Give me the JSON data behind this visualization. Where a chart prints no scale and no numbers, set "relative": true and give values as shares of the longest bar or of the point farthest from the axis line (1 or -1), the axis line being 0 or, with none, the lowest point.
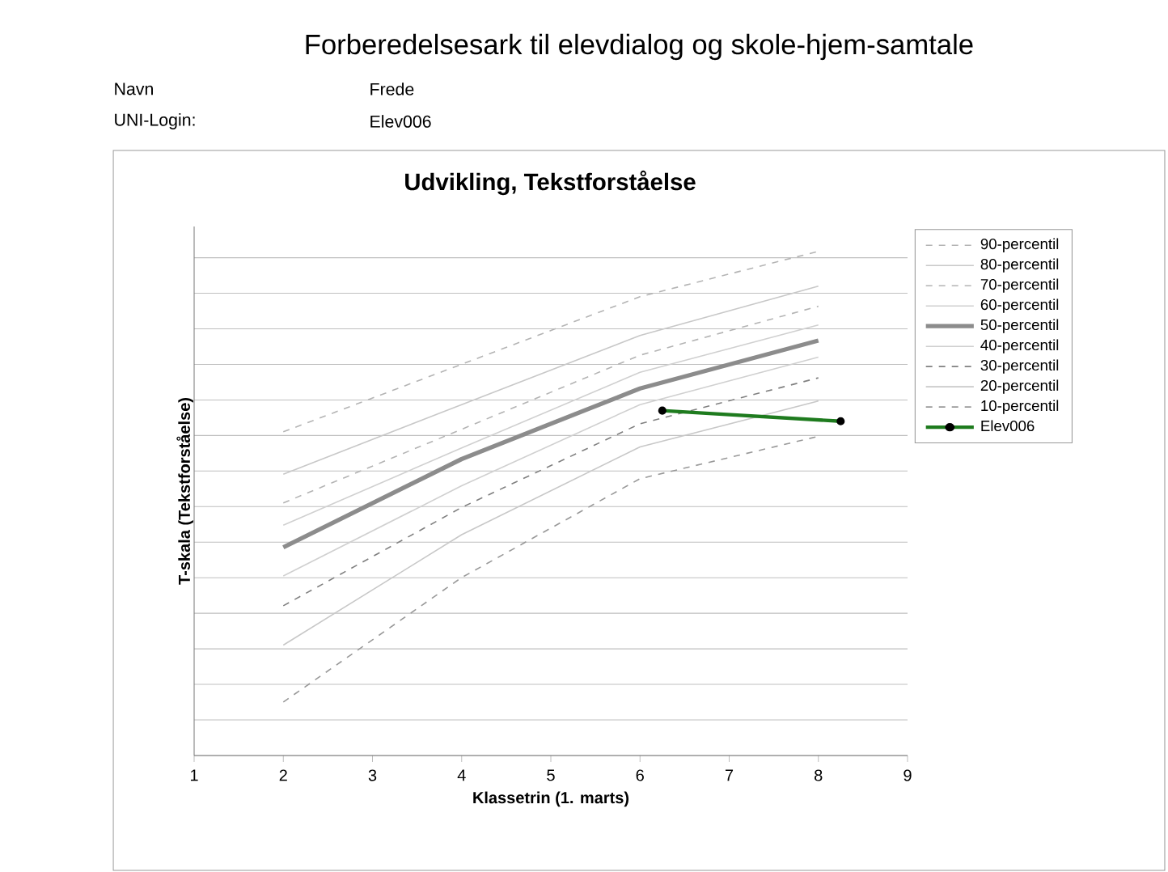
{
  "chart_data": {
    "type": "line",
    "title": "Forberedelsesark til elevdialog og skole-hjem-samtale",
    "subtitle": "Udvikling, Tekstforståelse",
    "annotations": [
      "Navn",
      "Frede",
      "UNI-Login:",
      "Elev006"
    ],
    "xlabel": "Klassetrin (1. marts)",
    "ylabel": "T-skala (Tekstforståelse)",
    "xlim": [
      1,
      9
    ],
    "xticks": [
      1,
      2,
      3,
      4,
      5,
      6,
      7,
      8,
      9
    ],
    "relative": true,
    "tick_labels": "x",
    "grid": "y",
    "legend": "right",
    "marker": "none",
    "series": [
      {
        "name": "90-percentil",
        "color": "#b4b4b4",
        "line_style": "dashed",
        "x": [
          2,
          4,
          6,
          8
        ],
        "values": [
          0.642,
          0.776,
          0.91,
          1.0
        ]
      },
      {
        "name": "80-percentil",
        "color": "#c8c8c8",
        "line_style": "solid",
        "x": [
          2,
          4,
          6,
          8
        ],
        "values": [
          0.558,
          0.696,
          0.833,
          0.931
        ]
      },
      {
        "name": "70-percentil",
        "color": "#b4b4b4",
        "line_style": "dashed",
        "x": [
          2,
          4,
          6,
          8
        ],
        "values": [
          0.501,
          0.647,
          0.794,
          0.891
        ]
      },
      {
        "name": "60-percentil",
        "color": "#d0d0d0",
        "line_style": "solid",
        "x": [
          2,
          4,
          6,
          8
        ],
        "values": [
          0.457,
          0.61,
          0.76,
          0.854
        ]
      },
      {
        "name": "50-percentil",
        "color": "#8c8c8c",
        "line_style": "solid",
        "x": [
          2,
          4,
          6,
          8
        ],
        "values": [
          0.413,
          0.588,
          0.728,
          0.823
        ]
      },
      {
        "name": "40-percentil",
        "color": "#d0d0d0",
        "line_style": "solid",
        "x": [
          2,
          4,
          6,
          8
        ],
        "values": [
          0.356,
          0.535,
          0.696,
          0.79
        ]
      },
      {
        "name": "30-percentil",
        "color": "#808080",
        "line_style": "dashed",
        "x": [
          2,
          4,
          6,
          8
        ],
        "values": [
          0.297,
          0.492,
          0.658,
          0.749
        ]
      },
      {
        "name": "20-percentil",
        "color": "#c8c8c8",
        "line_style": "solid",
        "x": [
          2,
          4,
          6,
          8
        ],
        "values": [
          0.219,
          0.438,
          0.612,
          0.703
        ]
      },
      {
        "name": "10-percentil",
        "color": "#999999",
        "line_style": "dashed",
        "x": [
          2,
          4,
          6,
          8
        ],
        "values": [
          0.106,
          0.353,
          0.549,
          0.633
        ]
      },
      {
        "name": "Elev006",
        "color": "#1e7b1e",
        "line_style": "solid",
        "marker": "circle",
        "x": [
          6.25,
          8.25
        ],
        "values": [
          0.684,
          0.663
        ]
      }
    ]
  }
}
